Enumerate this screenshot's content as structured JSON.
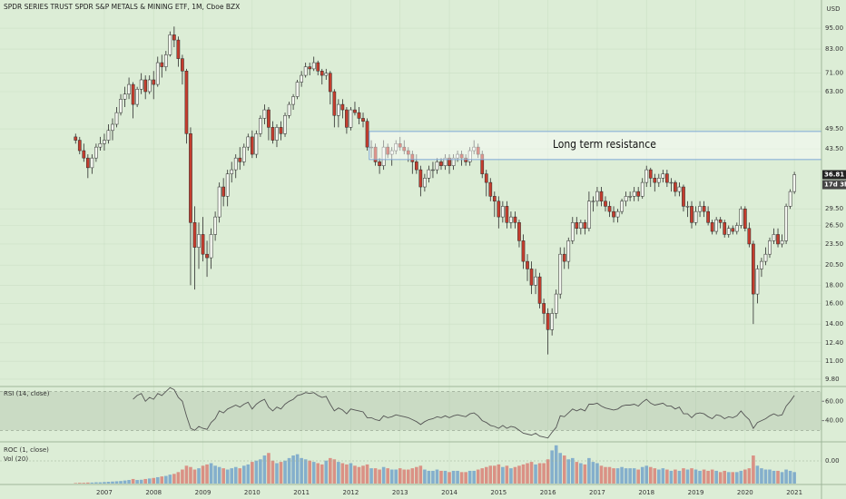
{
  "chart_data": {
    "type": "candlestick",
    "title": "SPDR SERIES TRUST SPDR S&P METALS & MINING ETF, 1M, Cboe BZX",
    "currency": "USD",
    "countdown": "17d 3h",
    "log_scale": true,
    "grid": true,
    "colors": {
      "background": "#dcedd6",
      "grid": "#cbe0c5",
      "up": "#f3f6ef",
      "down": "#c43d2e",
      "outline": "#2c2c2c",
      "zone": "#7fa8d6",
      "volume_up": "#4a86c5",
      "volume_down": "#d9534f",
      "rsi": "#555555"
    },
    "ylim": [
      9.4,
      114
    ],
    "yticks": [
      {
        "value": 9.8,
        "label": "9.80"
      },
      {
        "value": 11,
        "label": "11.00"
      },
      {
        "value": 12.4,
        "label": "12.40"
      },
      {
        "value": 14,
        "label": "14.00"
      },
      {
        "value": 16,
        "label": "16.00"
      },
      {
        "value": 18,
        "label": "18.00"
      },
      {
        "value": 20.5,
        "label": "20.50"
      },
      {
        "value": 23.5,
        "label": "23.50"
      },
      {
        "value": 26.5,
        "label": "26.50"
      },
      {
        "value": 29.5,
        "label": "29.50"
      },
      {
        "value": 43.5,
        "label": "43.50"
      },
      {
        "value": 49.5,
        "label": "49.50"
      },
      {
        "value": 63,
        "label": "63.00"
      },
      {
        "value": 71,
        "label": "71.00"
      },
      {
        "value": 83,
        "label": "83.00"
      },
      {
        "value": 95,
        "label": "95.00"
      }
    ],
    "xlim": [
      -18.4,
      181.6
    ],
    "xticks": [
      {
        "value": 7,
        "label": "2007"
      },
      {
        "value": 19,
        "label": "2008"
      },
      {
        "value": 31,
        "label": "2009"
      },
      {
        "value": 43,
        "label": "2010"
      },
      {
        "value": 55,
        "label": "2011"
      },
      {
        "value": 67,
        "label": "2012"
      },
      {
        "value": 79,
        "label": "2013"
      },
      {
        "value": 91,
        "label": "2014"
      },
      {
        "value": 103,
        "label": "2015"
      },
      {
        "value": 115,
        "label": "2016"
      },
      {
        "value": 127,
        "label": "2017"
      },
      {
        "value": 139,
        "label": "2018"
      },
      {
        "value": 151,
        "label": "2019"
      },
      {
        "value": 163,
        "label": "2020"
      },
      {
        "value": 175,
        "label": "2021"
      }
    ],
    "zone": {
      "label": "Long term resistance",
      "x_start": 71.5,
      "low": 40.6,
      "high": 48.7
    },
    "candles": [
      [
        47,
        48,
        45,
        46
      ],
      [
        46,
        47,
        42,
        43
      ],
      [
        43,
        45,
        40,
        41
      ],
      [
        41,
        42,
        36,
        38.5
      ],
      [
        38.5,
        42,
        37,
        41
      ],
      [
        41,
        45,
        40,
        44
      ],
      [
        44,
        47,
        43,
        45
      ],
      [
        45,
        48,
        43,
        46
      ],
      [
        46,
        51,
        45,
        49
      ],
      [
        49,
        53,
        46,
        51
      ],
      [
        51,
        57,
        50,
        55
      ],
      [
        55,
        62,
        54,
        60
      ],
      [
        60,
        65,
        57,
        62
      ],
      [
        62,
        69,
        60,
        66
      ],
      [
        66,
        67,
        53,
        58
      ],
      [
        58,
        65,
        57,
        64
      ],
      [
        64,
        71,
        62,
        68
      ],
      [
        68,
        70,
        60,
        63
      ],
      [
        63,
        70,
        62,
        68
      ],
      [
        68,
        72,
        60,
        66
      ],
      [
        66,
        79,
        65,
        76
      ],
      [
        76,
        80,
        69,
        74
      ],
      [
        74,
        82,
        72,
        80
      ],
      [
        80,
        93,
        79,
        91
      ],
      [
        91,
        96,
        84,
        88
      ],
      [
        88,
        90,
        74,
        78
      ],
      [
        78,
        80,
        66,
        72
      ],
      [
        72,
        73,
        45,
        48
      ],
      [
        48,
        50,
        18,
        27
      ],
      [
        27,
        30,
        17.5,
        23
      ],
      [
        23,
        27,
        20,
        25
      ],
      [
        25,
        28,
        21,
        22
      ],
      [
        22,
        24,
        19,
        21.5
      ],
      [
        21.5,
        26,
        20,
        25
      ],
      [
        25,
        29,
        24,
        28
      ],
      [
        28,
        35,
        27,
        34
      ],
      [
        34,
        36,
        30,
        32
      ],
      [
        32,
        38,
        30,
        37
      ],
      [
        37,
        40,
        35,
        38
      ],
      [
        38,
        42,
        36,
        41
      ],
      [
        41,
        44,
        38,
        40
      ],
      [
        40,
        45,
        39,
        44
      ],
      [
        44,
        48,
        43,
        47
      ],
      [
        47,
        49,
        41,
        42
      ],
      [
        42,
        49,
        41,
        48
      ],
      [
        48,
        54,
        47,
        53
      ],
      [
        53,
        58,
        51,
        56
      ],
      [
        56,
        57,
        46,
        50
      ],
      [
        50,
        52,
        45,
        46
      ],
      [
        46,
        51,
        44,
        50
      ],
      [
        50,
        52,
        46,
        48
      ],
      [
        48,
        55,
        47,
        54
      ],
      [
        54,
        59,
        53,
        58
      ],
      [
        58,
        62,
        56,
        61
      ],
      [
        61,
        68,
        60,
        67
      ],
      [
        67,
        72,
        65,
        70
      ],
      [
        70,
        76,
        69,
        74
      ],
      [
        74,
        76,
        70,
        73
      ],
      [
        73,
        79,
        72,
        76
      ],
      [
        76,
        77,
        70,
        72
      ],
      [
        72,
        73,
        66,
        70
      ],
      [
        70,
        73,
        68,
        71
      ],
      [
        71,
        72,
        58,
        63
      ],
      [
        63,
        64,
        50,
        54
      ],
      [
        54,
        60,
        50,
        58
      ],
      [
        58,
        60,
        53,
        56
      ],
      [
        56,
        57,
        48,
        50
      ],
      [
        50,
        57,
        49,
        56
      ],
      [
        56,
        59,
        54,
        55
      ],
      [
        55,
        57,
        51,
        53
      ],
      [
        53,
        55,
        50,
        52
      ],
      [
        52,
        53,
        43,
        44
      ],
      [
        44,
        46,
        41,
        44
      ],
      [
        44,
        45,
        39,
        40
      ],
      [
        40,
        41,
        37,
        39
      ],
      [
        39,
        46,
        38,
        44
      ],
      [
        44,
        45,
        41,
        42
      ],
      [
        42,
        44,
        39,
        43
      ],
      [
        43,
        46,
        42,
        45
      ],
      [
        45,
        47,
        43,
        44
      ],
      [
        44,
        46,
        42,
        43
      ],
      [
        43,
        44,
        40,
        42
      ],
      [
        42,
        43,
        37,
        40
      ],
      [
        40,
        42,
        37,
        38
      ],
      [
        38,
        39,
        32,
        34
      ],
      [
        34,
        37,
        33,
        36
      ],
      [
        36,
        39,
        35,
        38
      ],
      [
        38,
        40,
        36,
        38
      ],
      [
        38,
        41,
        37,
        40
      ],
      [
        40,
        41,
        38,
        39
      ],
      [
        39,
        42,
        38,
        41
      ],
      [
        41,
        42,
        37,
        39
      ],
      [
        39,
        42,
        38,
        41
      ],
      [
        41,
        43,
        40,
        42
      ],
      [
        42,
        43,
        39,
        41
      ],
      [
        41,
        42,
        39,
        40
      ],
      [
        40,
        44,
        39,
        43
      ],
      [
        43,
        46,
        42,
        44
      ],
      [
        44,
        45,
        41,
        42
      ],
      [
        42,
        43,
        36,
        37
      ],
      [
        37,
        38,
        32,
        35
      ],
      [
        35,
        36,
        31,
        32
      ],
      [
        32,
        33,
        28,
        31
      ],
      [
        31,
        32,
        26,
        28
      ],
      [
        28,
        31,
        27,
        30
      ],
      [
        30,
        31,
        26,
        27
      ],
      [
        27,
        29,
        26,
        28
      ],
      [
        28,
        29,
        26,
        27
      ],
      [
        27,
        27.5,
        23,
        24
      ],
      [
        24,
        25,
        20,
        21
      ],
      [
        21,
        22,
        18.5,
        20
      ],
      [
        20,
        21,
        17,
        18
      ],
      [
        18,
        20,
        17,
        19
      ],
      [
        19,
        19.5,
        15.5,
        16
      ],
      [
        16,
        16.5,
        14,
        15
      ],
      [
        15,
        15.5,
        11.5,
        13.5
      ],
      [
        13.5,
        15.5,
        13,
        15
      ],
      [
        15,
        17.5,
        14.5,
        17
      ],
      [
        17,
        23,
        16.5,
        22
      ],
      [
        22,
        23,
        20,
        21
      ],
      [
        21,
        24.5,
        20,
        24
      ],
      [
        24,
        28,
        23.5,
        27
      ],
      [
        27,
        28,
        25,
        26
      ],
      [
        26,
        27.5,
        25,
        27
      ],
      [
        27,
        27.5,
        25,
        26
      ],
      [
        26,
        33,
        25.5,
        31
      ],
      [
        31,
        32,
        29,
        31
      ],
      [
        31,
        34,
        30,
        33
      ],
      [
        33,
        34,
        30,
        31
      ],
      [
        31,
        32,
        29,
        30
      ],
      [
        30,
        31,
        28,
        29
      ],
      [
        29,
        30,
        27,
        28
      ],
      [
        28,
        29.5,
        27,
        29
      ],
      [
        29,
        31.5,
        28.5,
        31
      ],
      [
        31,
        33,
        30,
        32
      ],
      [
        32,
        33,
        31,
        32
      ],
      [
        32,
        34,
        31,
        33
      ],
      [
        33,
        34,
        31,
        32
      ],
      [
        32,
        36,
        31.5,
        35
      ],
      [
        35,
        39,
        34,
        38
      ],
      [
        38,
        38.5,
        34,
        36
      ],
      [
        36,
        37,
        33,
        35
      ],
      [
        35,
        37,
        34,
        36
      ],
      [
        36,
        38,
        35,
        37
      ],
      [
        37,
        38,
        34,
        35
      ],
      [
        35,
        36,
        33,
        35
      ],
      [
        35,
        35.5,
        32,
        33
      ],
      [
        33,
        35,
        32,
        34
      ],
      [
        34,
        34.5,
        29,
        30
      ],
      [
        30,
        31,
        28,
        30
      ],
      [
        30,
        31,
        26,
        27
      ],
      [
        27,
        30,
        26.5,
        29
      ],
      [
        29,
        31,
        28,
        30
      ],
      [
        30,
        31,
        28,
        29
      ],
      [
        29,
        30,
        26.5,
        27
      ],
      [
        27,
        27.5,
        25,
        25.5
      ],
      [
        25.5,
        28,
        25,
        27.5
      ],
      [
        27.5,
        28,
        26,
        27
      ],
      [
        27,
        27.5,
        24.5,
        25
      ],
      [
        25,
        26.5,
        24.5,
        26
      ],
      [
        26,
        26.5,
        25,
        25.5
      ],
      [
        25.5,
        27,
        25,
        26.5
      ],
      [
        26.5,
        30,
        26,
        29.5
      ],
      [
        29.5,
        30,
        25.5,
        26
      ],
      [
        26,
        27,
        23,
        23.5
      ],
      [
        23.5,
        24,
        14,
        17
      ],
      [
        17,
        20.5,
        16,
        20
      ],
      [
        20,
        21.5,
        19,
        21
      ],
      [
        21,
        23,
        20.5,
        22
      ],
      [
        22,
        24.5,
        21.5,
        24
      ],
      [
        24,
        26,
        23.5,
        25
      ],
      [
        25,
        26,
        23,
        23.5
      ],
      [
        23.5,
        25,
        23,
        24
      ],
      [
        24,
        30.5,
        23.5,
        30
      ],
      [
        30,
        33.5,
        29.5,
        33
      ],
      [
        33,
        37.5,
        32.5,
        36.81
      ]
    ],
    "rsi": {
      "label": "RSI (14, close)",
      "ylim": [
        19,
        74.3
      ],
      "band": [
        30,
        70
      ],
      "yticks": [
        {
          "value": 40,
          "label": "40.00"
        },
        {
          "value": 60,
          "label": "60.00"
        }
      ],
      "values": [
        null,
        null,
        null,
        null,
        null,
        null,
        null,
        null,
        null,
        null,
        null,
        null,
        null,
        null,
        62,
        66,
        68,
        60,
        64,
        62,
        68,
        66,
        70,
        74,
        72,
        64,
        60,
        45,
        32,
        30,
        34,
        32,
        31,
        38,
        42,
        50,
        48,
        52,
        54,
        56,
        54,
        57,
        59,
        52,
        57,
        60,
        62,
        54,
        50,
        54,
        52,
        57,
        60,
        62,
        66,
        67,
        69,
        68,
        69,
        66,
        64,
        65,
        57,
        50,
        53,
        51,
        47,
        52,
        51,
        50,
        49,
        43,
        43,
        41,
        40,
        45,
        43,
        44,
        46,
        45,
        44,
        43,
        41,
        39,
        36,
        39,
        41,
        42,
        44,
        43,
        45,
        43,
        45,
        46,
        45,
        44,
        47,
        48,
        45,
        40,
        38,
        35,
        34,
        32,
        35,
        32,
        34,
        33,
        30,
        27,
        26,
        25,
        27,
        24,
        23,
        22,
        28,
        33,
        45,
        44,
        48,
        52,
        50,
        52,
        50,
        57,
        57,
        58,
        55,
        53,
        52,
        51,
        52,
        55,
        56,
        56,
        57,
        55,
        59,
        62,
        58,
        56,
        57,
        58,
        55,
        55,
        52,
        54,
        47,
        47,
        43,
        47,
        48,
        47,
        44,
        42,
        46,
        45,
        42,
        44,
        43,
        45,
        50,
        45,
        41,
        32,
        38,
        40,
        42,
        45,
        47,
        45,
        46,
        55,
        60,
        66
      ]
    },
    "roc": {
      "label": "ROC (1, close)",
      "ylim": [
        -50,
        50
      ],
      "yticks": [
        {
          "value": 0,
          "label": "0.00"
        }
      ]
    },
    "volume": {
      "label": "Vol (20)",
      "ylim": [
        0,
        160
      ],
      "values": [
        2,
        3,
        3,
        4,
        4,
        5,
        5,
        6,
        7,
        8,
        9,
        10,
        12,
        14,
        18,
        14,
        15,
        18,
        20,
        22,
        25,
        28,
        30,
        35,
        38,
        45,
        55,
        70,
        65,
        55,
        60,
        70,
        75,
        80,
        70,
        65,
        60,
        55,
        60,
        65,
        60,
        70,
        75,
        85,
        90,
        95,
        110,
        120,
        90,
        80,
        85,
        90,
        100,
        110,
        115,
        100,
        95,
        90,
        85,
        80,
        75,
        90,
        100,
        95,
        85,
        80,
        75,
        80,
        70,
        65,
        70,
        75,
        60,
        60,
        55,
        65,
        60,
        55,
        55,
        60,
        55,
        55,
        60,
        65,
        70,
        55,
        50,
        50,
        55,
        50,
        50,
        45,
        50,
        50,
        45,
        45,
        50,
        50,
        55,
        60,
        65,
        70,
        70,
        75,
        65,
        70,
        60,
        65,
        70,
        75,
        80,
        85,
        75,
        80,
        80,
        95,
        130,
        150,
        120,
        110,
        95,
        100,
        85,
        80,
        75,
        100,
        85,
        80,
        70,
        65,
        65,
        60,
        60,
        65,
        60,
        60,
        60,
        55,
        65,
        70,
        65,
        60,
        55,
        60,
        55,
        50,
        55,
        50,
        60,
        55,
        60,
        55,
        50,
        55,
        50,
        55,
        50,
        45,
        50,
        45,
        45,
        45,
        50,
        55,
        60,
        110,
        70,
        60,
        55,
        55,
        50,
        50,
        45,
        55,
        50,
        45
      ]
    }
  }
}
